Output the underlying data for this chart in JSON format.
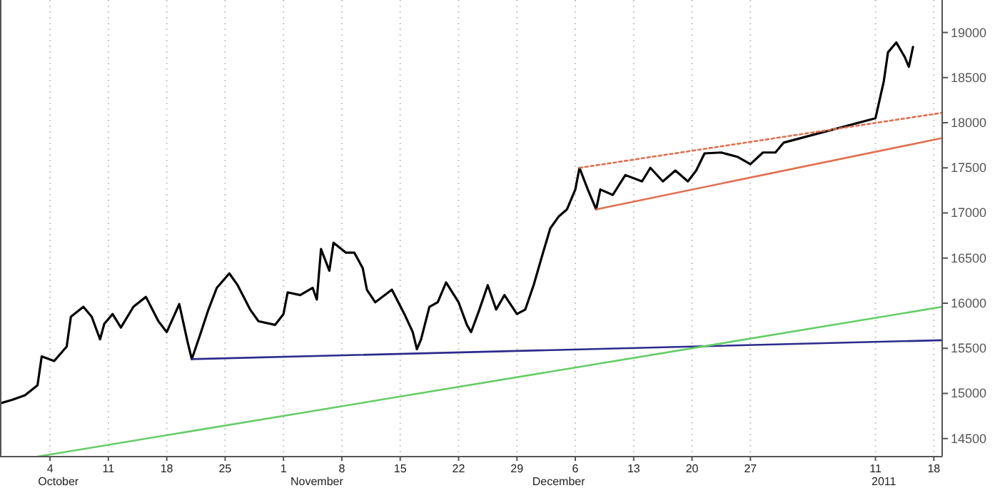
{
  "chart_data": {
    "type": "line",
    "xlim": [
      "2010-09-28",
      "2011-01-19"
    ],
    "ylim": [
      14300,
      19360
    ],
    "yticks": [
      14500,
      15000,
      15500,
      16000,
      16500,
      17000,
      17500,
      18000,
      18500,
      19000
    ],
    "xticks": [
      {
        "value": "2010-10-04",
        "label": "4"
      },
      {
        "value": "2010-10-11",
        "label": "11"
      },
      {
        "value": "2010-10-18",
        "label": "18"
      },
      {
        "value": "2010-10-25",
        "label": "25"
      },
      {
        "value": "2010-11-01",
        "label": "1"
      },
      {
        "value": "2010-11-08",
        "label": "8"
      },
      {
        "value": "2010-11-15",
        "label": "15"
      },
      {
        "value": "2010-11-22",
        "label": "22"
      },
      {
        "value": "2010-11-29",
        "label": "29"
      },
      {
        "value": "2010-12-06",
        "label": "6"
      },
      {
        "value": "2010-12-13",
        "label": "13"
      },
      {
        "value": "2010-12-20",
        "label": "20"
      },
      {
        "value": "2010-12-27",
        "label": "27"
      },
      {
        "value": "2011-01-11",
        "label": "11"
      },
      {
        "value": "2011-01-18",
        "label": "18"
      }
    ],
    "x2lim": [
      "2010-09-28",
      "2011-01-19"
    ],
    "x2ticks": [
      {
        "value": "2010-10-05",
        "label": "October"
      },
      {
        "value": "2010-11-05",
        "label": "November"
      },
      {
        "value": "2010-12-04",
        "label": "December"
      },
      {
        "value": "2011-01-12",
        "label": "2011"
      }
    ],
    "grid": "x",
    "series": [
      {
        "color": "#000000",
        "x": [
          "2010-09-28T00:00",
          "2010-09-29T12:00",
          "2010-10-01T00:00",
          "2010-10-02T12:00",
          "2010-10-03T00:00",
          "2010-10-04T12:00",
          "2010-10-06T00:00",
          "2010-10-06T12:00",
          "2010-10-08T00:00",
          "2010-10-09T00:00",
          "2010-10-10T00:00",
          "2010-10-10T12:00",
          "2010-10-11T12:00",
          "2010-10-12T12:00",
          "2010-10-14T00:00",
          "2010-10-15T12:00",
          "2010-10-17T00:00",
          "2010-10-18T00:00",
          "2010-10-19T12:00",
          "2010-10-20T12:00",
          "2010-10-21T00:00",
          "2010-10-22T00:00",
          "2010-10-23T00:00",
          "2010-10-24T00:00",
          "2010-10-25T12:00",
          "2010-10-26T12:00",
          "2010-10-28T00:00",
          "2010-10-29T00:00",
          "2010-10-31T00:00",
          "2010-11-01T00:00",
          "2010-11-01T12:00",
          "2010-11-03T00:00",
          "2010-11-04T12:00",
          "2010-11-05T00:00",
          "2010-11-05T12:00",
          "2010-11-06T12:00",
          "2010-11-07T00:00",
          "2010-11-08T12:00",
          "2010-11-09T12:00",
          "2010-11-10T12:00",
          "2010-11-11T00:00",
          "2010-11-12T00:00",
          "2010-11-14T00:00",
          "2010-11-15T12:00",
          "2010-11-16T12:00",
          "2010-11-17T00:00",
          "2010-11-17T12:00",
          "2010-11-18T12:00",
          "2010-11-19T12:00",
          "2010-11-20T12:00",
          "2010-11-22T00:00",
          "2010-11-23T00:00",
          "2010-11-23T12:00",
          "2010-11-24T12:00",
          "2010-11-25T12:00",
          "2010-11-26T12:00",
          "2010-11-27T12:00",
          "2010-11-29T00:00",
          "2010-11-30T00:00",
          "2010-12-01T00:00",
          "2010-12-02T00:00",
          "2010-12-03T00:00",
          "2010-12-04T00:00",
          "2010-12-05T00:00",
          "2010-12-06T00:00",
          "2010-12-06T12:00",
          "2010-12-07T12:00",
          "2010-12-08T12:00",
          "2010-12-09T00:00",
          "2010-12-10T12:00",
          "2010-12-12T00:00",
          "2010-12-14T00:00",
          "2010-12-15T00:00",
          "2010-12-16T12:00",
          "2010-12-18T00:00",
          "2010-12-19T12:00",
          "2010-12-20T12:00",
          "2010-12-21T12:00",
          "2010-12-23T12:00",
          "2010-12-25T12:00",
          "2010-12-27T00:00",
          "2010-12-28T12:00",
          "2010-12-30T00:00",
          "2010-12-31T00:00",
          "2011-01-11T00:00",
          "2011-01-12T00:00",
          "2011-01-12T12:00",
          "2011-01-13T12:00",
          "2011-01-14T12:00",
          "2011-01-15T00:00",
          "2011-01-15T12:00"
        ],
        "values": [
          14890,
          14930,
          14980,
          15090,
          15410,
          15360,
          15520,
          15850,
          15960,
          15850,
          15600,
          15770,
          15880,
          15730,
          15960,
          16070,
          15800,
          15680,
          15990,
          15570,
          15380,
          15650,
          15930,
          16170,
          16330,
          16200,
          15930,
          15800,
          15760,
          15880,
          16120,
          16090,
          16170,
          16040,
          16600,
          16360,
          16670,
          16560,
          16560,
          16390,
          16150,
          16010,
          16150,
          15880,
          15680,
          15490,
          15600,
          15960,
          16010,
          16230,
          16010,
          15760,
          15680,
          15930,
          16200,
          15930,
          16090,
          15880,
          15930,
          16200,
          16520,
          16830,
          16960,
          17040,
          17260,
          17500,
          17260,
          17040,
          17260,
          17200,
          17420,
          17350,
          17500,
          17350,
          17470,
          17350,
          17470,
          17660,
          17670,
          17620,
          17540,
          17670,
          17670,
          17780,
          18050,
          18460,
          18780,
          18890,
          18730,
          18620,
          18840
        ]
      },
      {
        "color": "#2b2b8c",
        "x": [
          "2010-10-21",
          "2011-01-19"
        ],
        "values": [
          15380,
          15590
        ]
      },
      {
        "color": "#66cc66",
        "x": [
          "2010-10-02T12:00",
          "2011-01-19"
        ],
        "values": [
          14300,
          15960
        ]
      },
      {
        "color": "#e07050",
        "x": [
          "2010-12-08T12:00",
          "2011-01-19"
        ],
        "values": [
          17040,
          17830
        ]
      },
      {
        "color": "#e07050",
        "line_style": "dotted",
        "x": [
          "2010-12-06T12:00",
          "2011-01-19"
        ],
        "values": [
          17500,
          18110
        ]
      }
    ]
  }
}
